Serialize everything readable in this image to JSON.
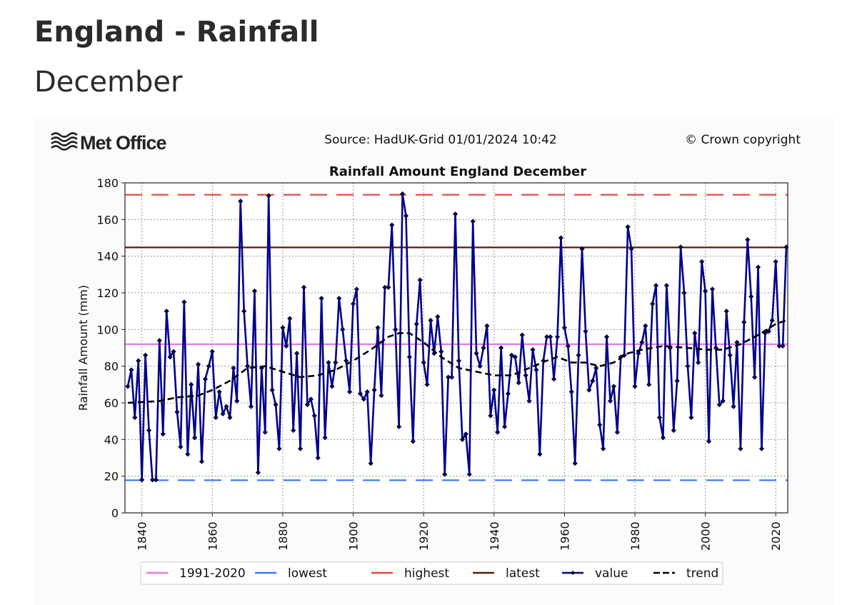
{
  "page": {
    "title": "England - Rainfall",
    "subtitle": "December"
  },
  "header": {
    "logo": "Met Office",
    "source": "Source: HadUK-Grid 01/01/2024 10:42",
    "copyright": "© Crown copyright"
  },
  "chart_data": {
    "type": "line",
    "title": "Rainfall Amount England December",
    "xlabel": "",
    "ylabel": "Rainfall Amount (mm)",
    "xlim": [
      1835.2,
      2023.4
    ],
    "ylim": [
      0,
      180
    ],
    "xticks": [
      1840,
      1860,
      1880,
      1900,
      1920,
      1940,
      1960,
      1980,
      2000,
      2020
    ],
    "yticks": [
      0,
      20,
      40,
      60,
      80,
      100,
      120,
      140,
      160,
      180
    ],
    "grid": true,
    "legend_position": "bottom",
    "reference_lines": [
      {
        "name": "1991-2020",
        "value": 92,
        "color": "#ee77ee",
        "style": "solid"
      },
      {
        "name": "lowest",
        "value": 17.8,
        "color": "#3377ff",
        "style": "dashed"
      },
      {
        "name": "highest",
        "value": 173.5,
        "color": "#e8443a",
        "style": "dashed"
      },
      {
        "name": "latest",
        "value": 144.8,
        "color": "#5a1a0a",
        "style": "solid"
      }
    ],
    "series": [
      {
        "name": "value",
        "color": "#00008b",
        "start_year": 1836,
        "values": [
          69,
          78,
          52,
          83,
          18,
          86,
          45,
          18,
          18,
          94,
          43,
          110,
          85,
          88,
          55,
          36,
          115,
          32,
          70,
          41,
          81,
          28,
          73,
          80,
          88,
          52,
          66,
          54,
          58,
          52,
          79,
          61,
          170,
          110,
          80,
          58,
          121,
          22,
          79,
          44,
          173,
          67,
          59,
          35,
          101,
          91,
          106,
          45,
          87,
          35,
          123,
          59,
          62,
          53,
          30,
          117,
          41,
          82,
          69,
          82,
          117,
          100,
          83,
          66,
          114,
          122,
          65,
          62,
          66,
          27,
          67,
          101,
          64,
          123,
          123,
          157,
          100,
          47,
          174,
          162,
          85,
          39,
          103,
          127,
          82,
          70,
          105,
          87,
          107,
          88,
          21,
          74,
          74,
          163,
          83,
          40,
          43,
          21,
          159,
          87,
          80,
          90,
          102,
          53,
          67,
          44,
          90,
          47,
          65,
          86,
          85,
          71,
          97,
          75,
          61,
          89,
          78,
          32,
          83,
          96,
          96,
          73,
          96,
          150,
          101,
          91,
          66,
          27,
          86,
          144,
          99,
          67,
          72,
          79,
          48,
          35,
          96,
          61,
          69,
          44,
          85,
          86,
          156,
          144,
          69,
          87,
          93,
          102,
          70,
          114,
          124,
          52,
          41,
          124,
          90,
          45,
          72,
          145,
          120,
          80,
          52,
          98,
          82,
          137,
          121,
          39,
          122,
          90,
          59,
          61,
          110,
          86,
          58,
          93,
          35,
          104,
          149,
          118,
          74,
          134,
          35,
          98,
          99,
          105,
          137,
          91,
          91,
          145
        ]
      },
      {
        "name": "trend",
        "color": "#000000",
        "x": [
          1836,
          1845,
          1850,
          1856,
          1860,
          1865,
          1870,
          1875,
          1880,
          1885,
          1890,
          1895,
          1900,
          1905,
          1910,
          1913,
          1916,
          1920,
          1925,
          1930,
          1935,
          1940,
          1945,
          1950,
          1955,
          1958,
          1962,
          1966,
          1970,
          1974,
          1978,
          1982,
          1988,
          1995,
          2000,
          2005,
          2010,
          2015,
          2020,
          2023
        ],
        "y": [
          60,
          61,
          63,
          64,
          67,
          72,
          79,
          80,
          77,
          74,
          75,
          78,
          83,
          89,
          96,
          98,
          98,
          93,
          85,
          79,
          77,
          75,
          75,
          79,
          83,
          85,
          82,
          82,
          80,
          82,
          87,
          89,
          91,
          90,
          89,
          89,
          92,
          97,
          103,
          105
        ]
      }
    ],
    "legend": [
      "1991-2020",
      "lowest",
      "highest",
      "latest",
      "value",
      "trend"
    ]
  }
}
